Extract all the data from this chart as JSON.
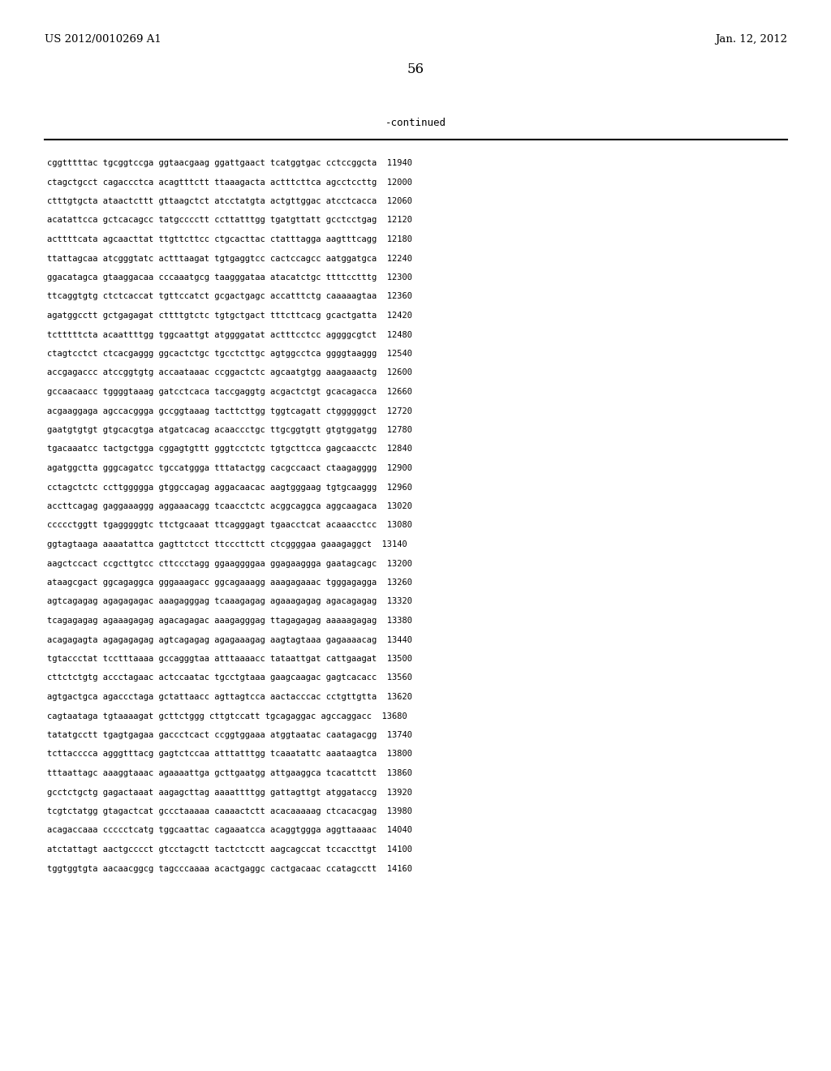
{
  "header_left": "US 2012/0010269 A1",
  "header_right": "Jan. 12, 2012",
  "page_number": "56",
  "continued_label": "-continued",
  "background_color": "#ffffff",
  "text_color": "#000000",
  "font_size_header": 9.5,
  "font_size_page": 12,
  "font_size_continued": 9,
  "font_size_sequence": 7.5,
  "sequence_lines": [
    "cggtttttac tgcggtccga ggtaacgaag ggattgaact tcatggtgac cctccggcta  11940",
    "ctagctgcct cagaccctca acagtttctt ttaaagacta actttcttca agcctccttg  12000",
    "ctttgtgcta ataactcttt gttaagctct atcctatgta actgttggac atcctcacca  12060",
    "acatattcca gctcacagcc tatgcccctt ccttatttgg tgatgttatt gcctcctgag  12120",
    "acttttcata agcaacttat ttgttcttcc ctgcacttac ctatttagga aagtttcagg  12180",
    "ttattagcaa atcgggtatc actttaagat tgtgaggtcc cactccagcc aatggatgca  12240",
    "ggacatagca gtaaggacaa cccaaatgcg taagggataa atacatctgc ttttcctttg  12300",
    "ttcaggtgtg ctctcaccat tgttccatct gcgactgagc accatttctg caaaaagtaa  12360",
    "agatggcctt gctgagagat cttttgtctc tgtgctgact tttcttcacg gcactgatta  12420",
    "tctttttcta acaattttgg tggcaattgt atggggatat actttcctcc aggggcgtct  12480",
    "ctagtcctct ctcacgaggg ggcactctgc tgcctcttgc agtggcctca ggggtaaggg  12540",
    "accgagaccc atccggtgtg accaataaac ccggactctc agcaatgtgg aaagaaactg  12600",
    "gccaacaacc tggggtaaag gatcctcaca taccgaggtg acgactctgt gcacagacca  12660",
    "acgaaggaga agccacggga gccggtaaag tacttcttgg tggtcagatt ctggggggct  12720",
    "gaatgtgtgt gtgcacgtga atgatcacag acaaccctgc ttgcggtgtt gtgtggatgg  12780",
    "tgacaaatcc tactgctgga cggagtgttt gggtcctctc tgtgcttcca gagcaacctc  12840",
    "agatggctta gggcagatcc tgccatggga tttatactgg cacgccaact ctaagagggg  12900",
    "cctagctctc ccttggggga gtggccagag aggacaacac aagtgggaag tgtgcaaggg  12960",
    "accttcagag gaggaaaggg aggaaacagg tcaacctctc acggcaggca aggcaagaca  13020",
    "ccccctggtt tgagggggtc ttctgcaaat ttcagggagt tgaacctcat acaaacctcc  13080",
    "ggtagtaaga aaaatattca gagttctcct ttcccttctt ctcggggaa gaaagaggct  13140",
    "aagctccact ccgcttgtcc cttccctagg ggaaggggaa ggagaaggga gaatagcagc  13200",
    "ataagcgact ggcagaggca gggaaagacc ggcagaaagg aaagagaaac tgggagagga  13260",
    "agtcagagag agagagagac aaagagggag tcaaagagag agaaagagag agacagagag  13320",
    "tcagagagag agaaagagag agacagagac aaagagggag ttagagagag aaaaagagag  13380",
    "acagagagta agagagagag agtcagagag agagaaagag aagtagtaaa gagaaaacag  13440",
    "tgtaccctat tcctttaaaa gccagggtaa atttaaaacc tataattgat cattgaagat  13500",
    "cttctctgtg accctagaac actccaatac tgcctgtaaa gaagcaagac gagtcacacc  13560",
    "agtgactgca agaccctaga gctattaacc agttagtcca aactacccac cctgttgtta  13620",
    "cagtaataga tgtaaaagat gcttctggg cttgtccatt tgcagaggac agccaggacc  13680",
    "tatatgcctt tgagtgagaa gaccctcact ccggtggaaa atggtaatac caatagacgg  13740",
    "tcttacccca agggtttacg gagtctccaa atttatttgg tcaaatattc aaataagtca  13800",
    "tttaattagc aaaggtaaac agaaaattga gcttgaatgg attgaaggca tcacattctt  13860",
    "gcctctgctg gagactaaat aagagcttag aaaattttgg gattagttgt atggataccg  13920",
    "tcgtctatgg gtagactcat gccctaaaaa caaaactctt acacaaaaag ctcacacgag  13980",
    "acagaccaaa ccccctcatg tggcaattac cagaaatcca acaggtggga aggttaaaac  14040",
    "atctattagt aactgcccct gtcctagctt tactctcctt aagcagccat tccaccttgt  14100",
    "tggtggtgta aacaacggcg tagcccaaaa acactgaggc cactgacaac ccatagcctt  14160"
  ]
}
